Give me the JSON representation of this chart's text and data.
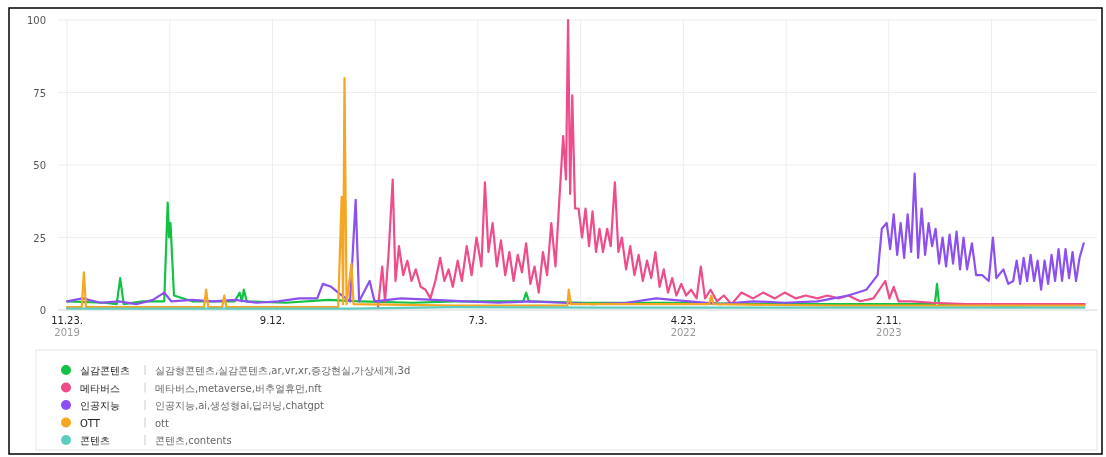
{
  "chart_data": {
    "type": "line",
    "xlim": [
      "2019-11-10",
      "2023-12-06"
    ],
    "ylim": [
      0,
      100
    ],
    "xticks": [
      {
        "value": "2019-11-23",
        "label": "11.23. 2019"
      },
      {
        "value": "2020-04-18",
        "label": null
      },
      {
        "value": "2020-09-12",
        "label": "9.12."
      },
      {
        "value": "2021-02-06",
        "label": null
      },
      {
        "value": "2021-07-03",
        "label": "7.3."
      },
      {
        "value": "2021-11-27",
        "label": null
      },
      {
        "value": "2022-04-23",
        "label": "4.23. 2022"
      },
      {
        "value": "2022-09-17",
        "label": null
      },
      {
        "value": "2023-02-11",
        "label": "2.11. 2023"
      },
      {
        "value": "2023-07-08",
        "label": null
      }
    ],
    "yticks": [
      0,
      25,
      50,
      75,
      100
    ],
    "grid": true,
    "legend": "bottom",
    "marker": "none",
    "annotations": [
      "실감형콘텐츠,실감콘텐츠,ar,vr,xr,증강현실,가상세계,3d",
      "메타버스,metaverse,버추얼휴먼,nft",
      "인공지능,ai,생성형ai,딥러닝,chatgpt",
      "ott",
      "콘텐츠,contents"
    ],
    "series": [
      {
        "name": "실감콘텐츠",
        "color": "#12c244",
        "x": [
          "2019-11-23",
          "2020-01-15",
          "2020-02-02",
          "2020-02-07",
          "2020-02-12",
          "2020-03-10",
          "2020-04-10",
          "2020-04-15",
          "2020-04-17",
          "2020-04-19",
          "2020-04-24",
          "2020-05-20",
          "2020-07-20",
          "2020-07-27",
          "2020-07-30",
          "2020-08-02",
          "2020-08-06",
          "2020-10-01",
          "2020-12-01",
          "2021-01-15",
          "2021-04-01",
          "2021-06-01",
          "2021-09-06",
          "2021-09-10",
          "2021-09-14",
          "2021-12-01",
          "2022-04-01",
          "2022-09-01",
          "2023-01-01",
          "2023-04-18",
          "2023-04-21",
          "2023-04-24",
          "2023-08-01",
          "2023-11-18"
        ],
        "values": [
          3,
          2.5,
          2,
          11,
          2,
          3,
          3,
          37,
          25,
          30,
          5,
          3,
          3,
          6,
          3,
          7,
          3,
          2.5,
          3.5,
          3,
          2.5,
          3,
          3,
          6,
          3,
          2.5,
          2.5,
          2,
          2,
          2,
          9,
          2,
          1.5,
          2
        ]
      },
      {
        "name": "메타버스",
        "color": "#ee4c8b",
        "x": [
          "2021-02-10",
          "2021-02-16",
          "2021-02-20",
          "2021-02-25",
          "2021-03-03",
          "2021-03-07",
          "2021-03-12",
          "2021-03-18",
          "2021-03-24",
          "2021-03-30",
          "2021-04-05",
          "2021-04-12",
          "2021-04-19",
          "2021-04-26",
          "2021-05-03",
          "2021-05-10",
          "2021-05-16",
          "2021-05-22",
          "2021-05-28",
          "2021-06-04",
          "2021-06-10",
          "2021-06-17",
          "2021-06-24",
          "2021-07-01",
          "2021-07-08",
          "2021-07-13",
          "2021-07-18",
          "2021-07-24",
          "2021-07-30",
          "2021-08-05",
          "2021-08-11",
          "2021-08-17",
          "2021-08-23",
          "2021-08-29",
          "2021-09-04",
          "2021-09-10",
          "2021-09-16",
          "2021-09-22",
          "2021-09-28",
          "2021-10-04",
          "2021-10-10",
          "2021-10-16",
          "2021-10-22",
          "2021-10-28",
          "2021-11-02",
          "2021-11-06",
          "2021-11-09",
          "2021-11-12",
          "2021-11-15",
          "2021-11-19",
          "2021-11-24",
          "2021-11-29",
          "2021-12-04",
          "2021-12-09",
          "2021-12-14",
          "2021-12-19",
          "2021-12-24",
          "2021-12-29",
          "2022-01-04",
          "2022-01-09",
          "2022-01-15",
          "2022-01-20",
          "2022-01-25",
          "2022-01-31",
          "2022-02-06",
          "2022-02-12",
          "2022-02-18",
          "2022-02-24",
          "2022-03-02",
          "2022-03-08",
          "2022-03-14",
          "2022-03-20",
          "2022-03-26",
          "2022-04-01",
          "2022-04-07",
          "2022-04-13",
          "2022-04-20",
          "2022-04-27",
          "2022-05-04",
          "2022-05-12",
          "2022-05-18",
          "2022-05-24",
          "2022-06-01",
          "2022-06-10",
          "2022-06-20",
          "2022-07-01",
          "2022-07-15",
          "2022-08-01",
          "2022-08-15",
          "2022-09-01",
          "2022-09-15",
          "2022-10-01",
          "2022-10-15",
          "2022-11-01",
          "2022-11-15",
          "2022-12-01",
          "2022-12-15",
          "2023-01-01",
          "2023-01-20",
          "2023-02-06",
          "2023-02-12",
          "2023-02-18",
          "2023-02-25",
          "2023-03-15",
          "2023-04-15",
          "2023-06-01",
          "2023-08-01",
          "2023-10-01",
          "2023-11-18"
        ],
        "values": [
          1,
          15,
          3,
          19,
          45,
          10,
          22,
          12,
          17,
          10,
          14,
          8,
          7,
          4,
          10,
          18,
          10,
          14,
          8,
          17,
          10,
          22,
          12,
          25,
          15,
          44,
          20,
          30,
          15,
          24,
          12,
          20,
          10,
          19,
          13,
          23,
          9,
          15,
          6,
          20,
          12,
          30,
          15,
          40,
          60,
          45,
          100,
          40,
          74,
          35,
          35,
          25,
          35,
          22,
          34,
          20,
          28,
          20,
          28,
          22,
          44,
          20,
          25,
          14,
          22,
          12,
          19,
          10,
          17,
          11,
          20,
          8,
          14,
          6,
          11,
          5,
          9,
          5,
          7,
          4,
          15,
          4,
          7,
          3,
          5,
          2,
          6,
          4,
          6,
          4,
          6,
          4,
          5,
          4,
          5,
          4,
          5,
          3,
          4,
          10,
          4,
          8,
          3,
          3,
          2.5,
          2,
          2,
          2,
          2
        ]
      },
      {
        "name": "인공지능",
        "color": "#8c4ff0",
        "x": [
          "2019-11-23",
          "2019-12-15",
          "2020-01-10",
          "2020-02-05",
          "2020-03-01",
          "2020-03-25",
          "2020-04-10",
          "2020-04-20",
          "2020-05-20",
          "2020-06-20",
          "2020-07-20",
          "2020-08-20",
          "2020-09-20",
          "2020-10-20",
          "2020-11-15",
          "2020-11-23",
          "2020-12-05",
          "2020-12-15",
          "2021-01-01",
          "2021-01-09",
          "2021-01-14",
          "2021-01-29",
          "2021-02-05",
          "2021-03-15",
          "2021-05-01",
          "2021-06-15",
          "2021-08-01",
          "2021-09-15",
          "2021-11-01",
          "2021-12-15",
          "2022-02-01",
          "2022-03-15",
          "2022-05-01",
          "2022-06-15",
          "2022-08-01",
          "2022-09-15",
          "2022-11-01",
          "2022-12-15",
          "2023-01-10",
          "2023-01-26",
          "2023-02-01",
          "2023-02-08",
          "2023-02-13",
          "2023-02-18",
          "2023-02-23",
          "2023-02-28",
          "2023-03-05",
          "2023-03-10",
          "2023-03-15",
          "2023-03-20",
          "2023-03-25",
          "2023-03-30",
          "2023-04-04",
          "2023-04-09",
          "2023-04-14",
          "2023-04-19",
          "2023-04-24",
          "2023-04-29",
          "2023-05-04",
          "2023-05-09",
          "2023-05-14",
          "2023-05-19",
          "2023-05-24",
          "2023-05-29",
          "2023-06-03",
          "2023-06-10",
          "2023-06-16",
          "2023-06-25",
          "2023-07-04",
          "2023-07-10",
          "2023-07-15",
          "2023-07-25",
          "2023-08-01",
          "2023-08-08",
          "2023-08-13",
          "2023-08-18",
          "2023-08-23",
          "2023-08-28",
          "2023-09-02",
          "2023-09-07",
          "2023-09-12",
          "2023-09-17",
          "2023-09-22",
          "2023-09-27",
          "2023-10-02",
          "2023-10-07",
          "2023-10-12",
          "2023-10-17",
          "2023-10-22",
          "2023-10-27",
          "2023-11-01",
          "2023-11-06",
          "2023-11-11",
          "2023-11-17"
        ],
        "values": [
          3,
          4,
          2.5,
          3,
          2,
          3.5,
          6,
          3,
          3.5,
          3,
          3.5,
          2.5,
          3,
          4,
          4,
          9,
          8,
          6,
          3,
          38,
          3,
          10,
          3,
          4,
          3.5,
          3,
          2.5,
          3,
          2.5,
          2,
          2.5,
          4,
          3,
          2,
          3,
          2.5,
          3,
          5,
          7,
          12,
          28,
          30,
          21,
          33,
          19,
          30,
          18,
          33,
          20,
          47,
          18,
          35,
          19,
          30,
          22,
          28,
          16,
          25,
          15,
          26,
          16,
          27,
          14,
          25,
          14,
          23,
          12,
          12,
          10,
          25,
          11,
          14,
          9,
          10,
          17,
          9,
          18,
          10,
          19,
          10,
          17,
          7,
          17,
          9,
          19,
          10,
          21,
          10,
          21,
          11,
          20,
          10,
          18,
          23
        ]
      },
      {
        "name": "OTT",
        "color": "#f5a623",
        "x": [
          "2019-11-23",
          "2019-12-14",
          "2019-12-17",
          "2019-12-20",
          "2020-06-06",
          "2020-06-09",
          "2020-06-12",
          "2020-07-02",
          "2020-07-05",
          "2020-07-08",
          "2020-12-15",
          "2020-12-20",
          "2020-12-22",
          "2020-12-24",
          "2020-12-27",
          "2021-01-03",
          "2021-01-06",
          "2021-06-01",
          "2021-11-08",
          "2021-11-10",
          "2021-11-13",
          "2022-05-30",
          "2022-06-02",
          "2022-06-05",
          "2022-12-01",
          "2023-06-01",
          "2023-11-18"
        ],
        "values": [
          1,
          1,
          13,
          1,
          1,
          7,
          1,
          1,
          5,
          1,
          1,
          39,
          2,
          80,
          2,
          16,
          2,
          1.5,
          1.5,
          7,
          2,
          2,
          5,
          2,
          1.5,
          1.5,
          1.5
        ]
      },
      {
        "name": "콘텐츠",
        "color": "#5dcdc0",
        "x": [
          "2019-11-23",
          "2020-06-01",
          "2021-01-01",
          "2021-06-01",
          "2022-01-01",
          "2022-06-01",
          "2023-01-01",
          "2023-06-01",
          "2023-11-18"
        ],
        "values": [
          0.5,
          0.5,
          0.5,
          1,
          0.8,
          0.8,
          0.8,
          0.8,
          0.8
        ]
      }
    ]
  }
}
